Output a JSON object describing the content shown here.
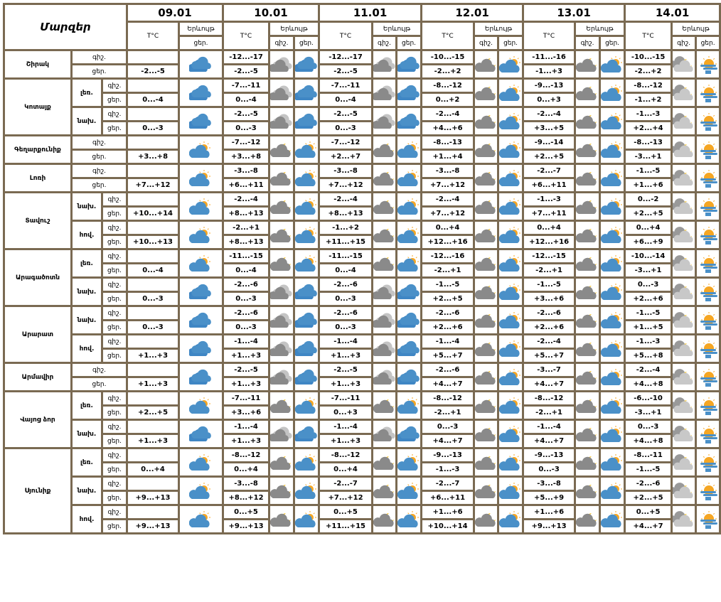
{
  "header": {
    "regions_title": "Մարզեր",
    "temp_label": "T°C",
    "phenomenon_label": "Երևույթ",
    "night_label": "գիշ.",
    "day_label": "ցեր.",
    "dates": [
      "09.01",
      "10.01",
      "11.01",
      "12.01",
      "13.01",
      "14.01"
    ]
  },
  "colors": {
    "grid": "#7a6a52",
    "cloud_blue": "#4a90c8",
    "cloud_gray": "#8a8a8a",
    "sun": "#f5a623"
  },
  "regions": [
    {
      "name": "Շիրակ",
      "rows": [
        {
          "sub": "",
          "temps": [
            [
              "",
              "-2...-5"
            ],
            [
              "-12...-17",
              "-2...-5"
            ],
            [
              "-12...-17",
              "-2...-5"
            ],
            [
              "-10...-15",
              "-2...+2"
            ],
            [
              "-11...-16",
              "-1...+3"
            ],
            [
              "-10...-15",
              "-2...+2"
            ]
          ],
          "icons": [
            [
              "cloudy-blue"
            ],
            [
              "clouds-gray",
              "cloudy-blue"
            ],
            [
              "clouds-gray",
              "cloudy-blue"
            ],
            [
              "night-cloud",
              "partly-sunny"
            ],
            [
              "night-cloud",
              "partly-sunny"
            ],
            [
              "night-light",
              "sun-fog"
            ]
          ]
        }
      ]
    },
    {
      "name": "Կոտայք",
      "rows": [
        {
          "sub": "լեռ.",
          "temps": [
            [
              "",
              "0...-4"
            ],
            [
              "-7...-11",
              "0...-4"
            ],
            [
              "-7...-11",
              "0...-4"
            ],
            [
              "-8...-12",
              "0...+2"
            ],
            [
              "-9...-13",
              "0...+3"
            ],
            [
              "-8...-12",
              "-1...+2"
            ]
          ],
          "icons": [
            [
              "cloudy-blue"
            ],
            [
              "clouds-gray",
              "cloudy-blue"
            ],
            [
              "clouds-gray",
              "cloudy-blue"
            ],
            [
              "night-cloud",
              "partly-sunny"
            ],
            [
              "night-cloud",
              "partly-sunny"
            ],
            [
              "night-light",
              "sun-fog"
            ]
          ]
        },
        {
          "sub": "նախ.",
          "temps": [
            [
              "",
              "0...-3"
            ],
            [
              "-2...-5",
              "0...-3"
            ],
            [
              "-2...-5",
              "0...-3"
            ],
            [
              "-2...-4",
              "+4...+6"
            ],
            [
              "-2...-4",
              "+3...+5"
            ],
            [
              "-1...-3",
              "+2...+4"
            ]
          ],
          "icons": [
            [
              "cloudy-blue"
            ],
            [
              "clouds-gray",
              "cloudy-blue"
            ],
            [
              "clouds-gray",
              "cloudy-blue"
            ],
            [
              "night-cloud",
              "partly-sunny"
            ],
            [
              "night-cloud",
              "partly-sunny"
            ],
            [
              "night-light",
              "sun-fog"
            ]
          ]
        }
      ]
    },
    {
      "name": "Գեղարքունիք",
      "rows": [
        {
          "sub": "",
          "temps": [
            [
              "",
              "+3...+8"
            ],
            [
              "-7...-12",
              "+3...+8"
            ],
            [
              "-7...-12",
              "+2...+7"
            ],
            [
              "-8...-13",
              "+1...+4"
            ],
            [
              "-9...-14",
              "+2...+5"
            ],
            [
              "-8...-13",
              "-3...+1"
            ]
          ],
          "icons": [
            [
              "partly-sunny"
            ],
            [
              "night-cloud",
              "partly-sunny"
            ],
            [
              "night-cloud",
              "partly-sunny"
            ],
            [
              "night-cloud",
              "partly-sunny"
            ],
            [
              "night-cloud",
              "partly-sunny"
            ],
            [
              "night-light",
              "sun-fog"
            ]
          ]
        }
      ]
    },
    {
      "name": "Լոռի",
      "rows": [
        {
          "sub": "",
          "temps": [
            [
              "",
              "+7...+12"
            ],
            [
              "-3...-8",
              "+6...+11"
            ],
            [
              "-3...-8",
              "+7...+12"
            ],
            [
              "-3...-8",
              "+7...+12"
            ],
            [
              "-2...-7",
              "+6...+11"
            ],
            [
              "-1...-5",
              "+1...+6"
            ]
          ],
          "icons": [
            [
              "partly-sunny"
            ],
            [
              "night-cloud",
              "partly-sunny"
            ],
            [
              "night-cloud",
              "partly-sunny"
            ],
            [
              "night-cloud",
              "partly-sunny"
            ],
            [
              "night-cloud",
              "partly-sunny"
            ],
            [
              "night-light",
              "sun-fog"
            ]
          ]
        }
      ]
    },
    {
      "name": "Տավուշ",
      "rows": [
        {
          "sub": "նախ.",
          "temps": [
            [
              "",
              "+10...+14"
            ],
            [
              "-2...-4",
              "+8...+13"
            ],
            [
              "-2...-4",
              "+8...+13"
            ],
            [
              "-2...-4",
              "+7...+12"
            ],
            [
              "-1...-3",
              "+7...+11"
            ],
            [
              "0...-2",
              "+2...+5"
            ]
          ],
          "icons": [
            [
              "partly-sunny"
            ],
            [
              "night-cloud",
              "partly-sunny"
            ],
            [
              "night-cloud",
              "partly-sunny"
            ],
            [
              "night-cloud",
              "partly-sunny"
            ],
            [
              "night-cloud",
              "partly-sunny"
            ],
            [
              "night-light",
              "sun-fog"
            ]
          ]
        },
        {
          "sub": "հով.",
          "temps": [
            [
              "",
              "+10...+13"
            ],
            [
              "-2...+1",
              "+8...+13"
            ],
            [
              "-1...+2",
              "+11...+15"
            ],
            [
              "0...+4",
              "+12...+16"
            ],
            [
              "0...+4",
              "+12...+16"
            ],
            [
              "0...+4",
              "+6...+9"
            ]
          ],
          "icons": [
            [
              "partly-sunny"
            ],
            [
              "night-cloud",
              "partly-sunny"
            ],
            [
              "night-cloud",
              "partly-sunny"
            ],
            [
              "night-cloud",
              "partly-sunny"
            ],
            [
              "night-cloud",
              "partly-sunny"
            ],
            [
              "night-light",
              "sun-fog"
            ]
          ]
        }
      ]
    },
    {
      "name": "Արագածոտն",
      "rows": [
        {
          "sub": "լեռ.",
          "temps": [
            [
              "",
              "0...-4"
            ],
            [
              "-11...-15",
              "0...-4"
            ],
            [
              "-11...-15",
              "0...-4"
            ],
            [
              "-12...-16",
              "-2...+1"
            ],
            [
              "-12...-15",
              "-2...+1"
            ],
            [
              "-10...-14",
              "-3...+1"
            ]
          ],
          "icons": [
            [
              "partly-sunny"
            ],
            [
              "night-cloud",
              "partly-sunny"
            ],
            [
              "night-cloud",
              "partly-sunny"
            ],
            [
              "night-cloud",
              "partly-sunny"
            ],
            [
              "night-cloud",
              "partly-sunny"
            ],
            [
              "night-light",
              "sun-fog"
            ]
          ]
        },
        {
          "sub": "նախ.",
          "temps": [
            [
              "",
              "0...-3"
            ],
            [
              "-2...-6",
              "0...-3"
            ],
            [
              "-2...-6",
              "0...-3"
            ],
            [
              "-1...-5",
              "+2...+5"
            ],
            [
              "-1...-5",
              "+3...+6"
            ],
            [
              "0...-3",
              "+2...+6"
            ]
          ],
          "icons": [
            [
              "cloudy-blue"
            ],
            [
              "clouds-gray",
              "cloudy-blue"
            ],
            [
              "clouds-gray",
              "cloudy-blue"
            ],
            [
              "night-cloud",
              "partly-sunny"
            ],
            [
              "night-cloud",
              "partly-sunny"
            ],
            [
              "night-light",
              "sun-fog"
            ]
          ]
        }
      ]
    },
    {
      "name": "Արարատ",
      "rows": [
        {
          "sub": "նախ.",
          "temps": [
            [
              "",
              "0...-3"
            ],
            [
              "-2...-6",
              "0...-3"
            ],
            [
              "-2...-6",
              "0...-3"
            ],
            [
              "-2...-6",
              "+2...+6"
            ],
            [
              "-2...-6",
              "+2...+6"
            ],
            [
              "-1...-5",
              "+1...+5"
            ]
          ],
          "icons": [
            [
              "cloudy-blue"
            ],
            [
              "clouds-gray",
              "cloudy-blue"
            ],
            [
              "clouds-gray",
              "cloudy-blue"
            ],
            [
              "night-cloud",
              "partly-sunny"
            ],
            [
              "night-cloud",
              "partly-sunny"
            ],
            [
              "night-light",
              "sun-fog"
            ]
          ]
        },
        {
          "sub": "հով.",
          "temps": [
            [
              "",
              "+1...+3"
            ],
            [
              "-1...-4",
              "+1...+3"
            ],
            [
              "-1...-4",
              "+1...+3"
            ],
            [
              "-1...-4",
              "+5...+7"
            ],
            [
              "-2...-4",
              "+5...+7"
            ],
            [
              "-1...-3",
              "+5...+8"
            ]
          ],
          "icons": [
            [
              "cloudy-blue"
            ],
            [
              "clouds-gray",
              "cloudy-blue"
            ],
            [
              "clouds-gray",
              "cloudy-blue"
            ],
            [
              "night-cloud",
              "partly-sunny"
            ],
            [
              "night-cloud",
              "partly-sunny"
            ],
            [
              "night-light",
              "sun-fog"
            ]
          ]
        }
      ]
    },
    {
      "name": "Արմավիր",
      "rows": [
        {
          "sub": "",
          "temps": [
            [
              "",
              "+1...+3"
            ],
            [
              "-2...-5",
              "+1...+3"
            ],
            [
              "-2...-5",
              "+1...+3"
            ],
            [
              "-2...-6",
              "+4...+7"
            ],
            [
              "-3...-7",
              "+4...+7"
            ],
            [
              "-2...-4",
              "+4...+8"
            ]
          ],
          "icons": [
            [
              "cloudy-blue"
            ],
            [
              "clouds-gray",
              "cloudy-blue"
            ],
            [
              "clouds-gray",
              "cloudy-blue"
            ],
            [
              "night-cloud",
              "partly-sunny"
            ],
            [
              "night-cloud",
              "partly-sunny"
            ],
            [
              "night-light",
              "sun-fog"
            ]
          ]
        }
      ]
    },
    {
      "name": "Վայոց ձոր",
      "rows": [
        {
          "sub": "լեռ.",
          "temps": [
            [
              "",
              "+2...+5"
            ],
            [
              "-7...-11",
              "+3...+6"
            ],
            [
              "-7...-11",
              "0...+3"
            ],
            [
              "-8...-12",
              "-2...+1"
            ],
            [
              "-8...-12",
              "-2...+1"
            ],
            [
              "-6...-10",
              "-3...+1"
            ]
          ],
          "icons": [
            [
              "partly-sunny"
            ],
            [
              "night-cloud",
              "partly-sunny"
            ],
            [
              "night-cloud",
              "partly-sunny"
            ],
            [
              "night-cloud",
              "partly-sunny"
            ],
            [
              "night-cloud",
              "partly-sunny"
            ],
            [
              "night-light",
              "sun-fog"
            ]
          ]
        },
        {
          "sub": "նախ.",
          "temps": [
            [
              "",
              "+1...+3"
            ],
            [
              "-1...-4",
              "+1...+3"
            ],
            [
              "-1...-4",
              "+1...+3"
            ],
            [
              "0...-3",
              "+4...+7"
            ],
            [
              "-1...-4",
              "+4...+7"
            ],
            [
              "0...-3",
              "+4...+8"
            ]
          ],
          "icons": [
            [
              "cloudy-blue"
            ],
            [
              "clouds-gray",
              "cloudy-blue"
            ],
            [
              "clouds-gray",
              "cloudy-blue"
            ],
            [
              "night-cloud",
              "partly-sunny"
            ],
            [
              "night-cloud",
              "partly-sunny"
            ],
            [
              "night-light",
              "sun-fog"
            ]
          ]
        }
      ]
    },
    {
      "name": "Սյունիք",
      "rows": [
        {
          "sub": "լեռ.",
          "temps": [
            [
              "",
              "0...+4"
            ],
            [
              "-8...-12",
              "0...+4"
            ],
            [
              "-8...-12",
              "0...+4"
            ],
            [
              "-9...-13",
              "-1...-3"
            ],
            [
              "-9...-13",
              "0...-3"
            ],
            [
              "-8...-11",
              "-1...-5"
            ]
          ],
          "icons": [
            [
              "partly-sunny"
            ],
            [
              "night-cloud",
              "partly-sunny"
            ],
            [
              "night-cloud",
              "partly-sunny"
            ],
            [
              "night-cloud",
              "partly-sunny"
            ],
            [
              "night-cloud",
              "partly-sunny"
            ],
            [
              "night-light",
              "sun-fog"
            ]
          ]
        },
        {
          "sub": "նախ.",
          "temps": [
            [
              "",
              "+9...+13"
            ],
            [
              "-3...-8",
              "+8...+12"
            ],
            [
              "-2...-7",
              "+7...+12"
            ],
            [
              "-2...-7",
              "+6...+11"
            ],
            [
              "-3...-8",
              "+5...+9"
            ],
            [
              "-2...-6",
              "+2...+5"
            ]
          ],
          "icons": [
            [
              "partly-sunny"
            ],
            [
              "night-cloud",
              "partly-sunny"
            ],
            [
              "night-cloud",
              "partly-sunny"
            ],
            [
              "night-cloud",
              "partly-sunny"
            ],
            [
              "night-cloud",
              "partly-sunny"
            ],
            [
              "night-light",
              "sun-fog"
            ]
          ]
        },
        {
          "sub": "հով.",
          "temps": [
            [
              "",
              "+9...+13"
            ],
            [
              "0...+5",
              "+9...+13"
            ],
            [
              "0...+5",
              "+11...+15"
            ],
            [
              "+1...+6",
              "+10...+14"
            ],
            [
              "+1...+6",
              "+9...+13"
            ],
            [
              "0...+5",
              "+4...+7"
            ]
          ],
          "icons": [
            [
              "partly-sunny"
            ],
            [
              "night-cloud",
              "partly-sunny"
            ],
            [
              "night-cloud",
              "partly-sunny"
            ],
            [
              "night-cloud",
              "partly-sunny"
            ],
            [
              "night-cloud",
              "partly-sunny"
            ],
            [
              "night-light",
              "sun-fog"
            ]
          ]
        }
      ]
    }
  ]
}
